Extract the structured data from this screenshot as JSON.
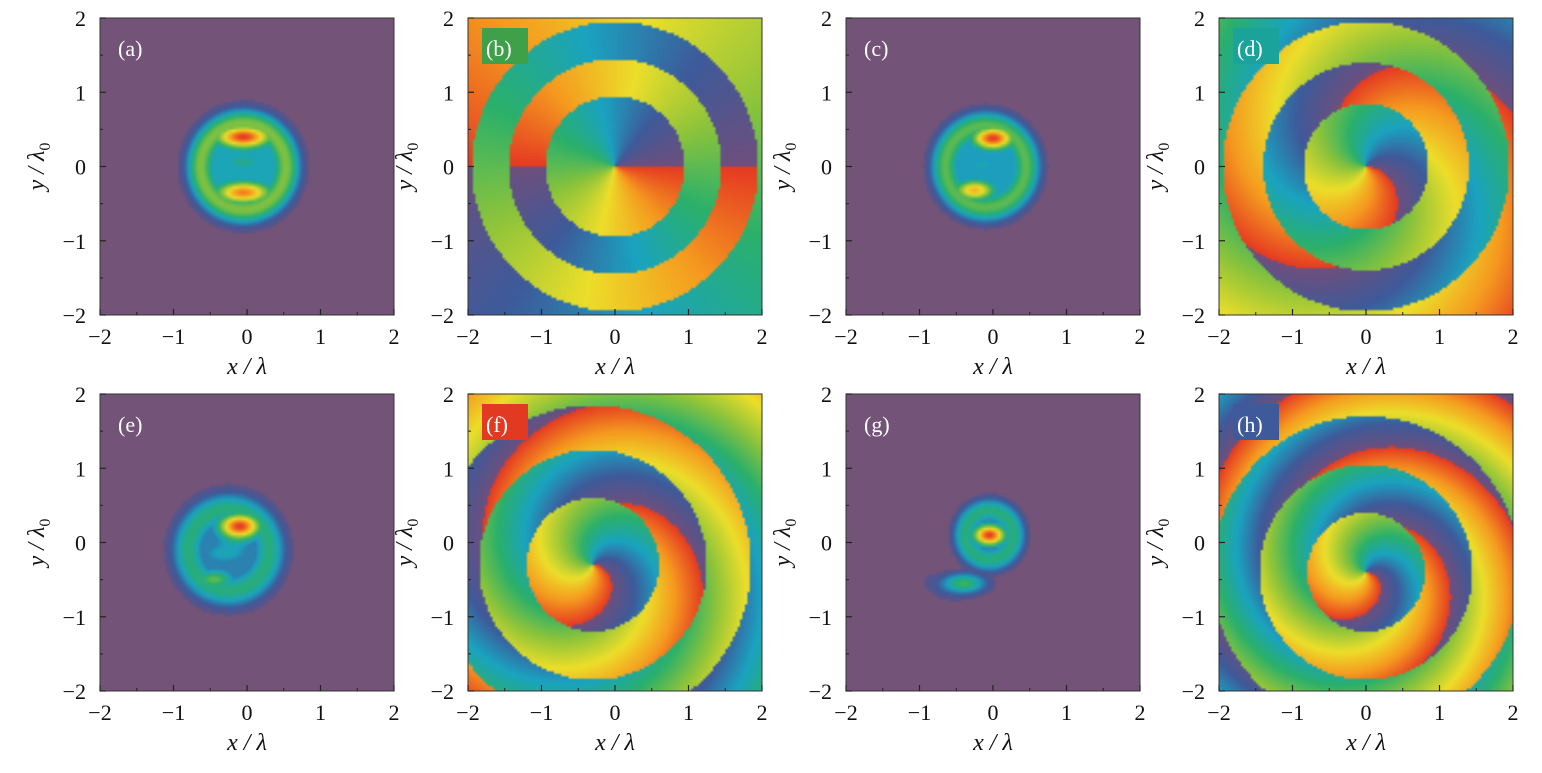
{
  "figure": {
    "panels": [
      {
        "id": "a",
        "label": "(a)",
        "kind": "intensity",
        "label_bg": "",
        "ylabel_style": "upright",
        "blobs": [
          {
            "x": -0.05,
            "y": 0.4,
            "sx": 0.3,
            "sy": 0.12,
            "a": 1.0
          },
          {
            "x": -0.05,
            "y": -0.35,
            "sx": 0.3,
            "sy": 0.12,
            "a": 0.9
          },
          {
            "x": -0.05,
            "y": 0.05,
            "sx": 0.32,
            "sy": 0.09,
            "a": 0.35
          }
        ],
        "ring": {
          "x": -0.05,
          "y": 0.0,
          "r": 0.58,
          "w": 0.14,
          "a": 0.55
        }
      },
      {
        "id": "b",
        "label": "(b)",
        "kind": "phase",
        "label_bg": "#3fa04a",
        "ylabel_style": "rotated",
        "vortex": {
          "x": 0.0,
          "y": 0.0
        },
        "spiral": 0.0,
        "rings": [
          0.95,
          1.45,
          1.95
        ]
      },
      {
        "id": "c",
        "label": "(c)",
        "kind": "intensity",
        "label_bg": "",
        "ylabel_style": "rotated",
        "blobs": [
          {
            "x": 0.0,
            "y": 0.38,
            "sx": 0.22,
            "sy": 0.12,
            "a": 1.0
          },
          {
            "x": -0.25,
            "y": -0.32,
            "sx": 0.22,
            "sy": 0.11,
            "a": 0.8
          },
          {
            "x": -0.15,
            "y": 0.02,
            "sx": 0.25,
            "sy": 0.08,
            "a": 0.3
          }
        ],
        "ring": {
          "x": -0.1,
          "y": 0.0,
          "r": 0.55,
          "w": 0.14,
          "a": 0.5
        }
      },
      {
        "id": "d",
        "label": "(d)",
        "kind": "phase",
        "label_bg": "#1aa39a",
        "ylabel_style": "rotated",
        "vortex": {
          "x": 0.0,
          "y": 0.0
        },
        "spiral": 0.6,
        "rings": [
          0.85,
          1.4,
          1.95
        ]
      },
      {
        "id": "e",
        "label": "(e)",
        "kind": "intensity",
        "label_bg": "",
        "ylabel_style": "upright",
        "blobs": [
          {
            "x": -0.1,
            "y": 0.22,
            "sx": 0.22,
            "sy": 0.13,
            "a": 1.0
          },
          {
            "x": -0.45,
            "y": -0.5,
            "sx": 0.22,
            "sy": 0.1,
            "a": 0.5
          },
          {
            "x": -0.3,
            "y": -0.15,
            "sx": 0.3,
            "sy": 0.12,
            "a": 0.3
          }
        ],
        "ring": {
          "x": -0.25,
          "y": -0.1,
          "r": 0.55,
          "w": 0.16,
          "a": 0.4
        }
      },
      {
        "id": "f",
        "label": "(f)",
        "kind": "phase",
        "label_bg": "#e23a22",
        "ylabel_style": "rotated",
        "vortex": {
          "x": -0.3,
          "y": -0.3
        },
        "spiral": 1.0,
        "rings": [
          0.9,
          1.55,
          2.15
        ]
      },
      {
        "id": "g",
        "label": "(g)",
        "kind": "intensity",
        "label_bg": "",
        "ylabel_style": "rotated",
        "blobs": [
          {
            "x": -0.05,
            "y": 0.1,
            "sx": 0.17,
            "sy": 0.11,
            "a": 1.0
          },
          {
            "x": -0.4,
            "y": -0.55,
            "sx": 0.22,
            "sy": 0.1,
            "a": 0.45
          }
        ],
        "ring": {
          "x": -0.05,
          "y": 0.1,
          "r": 0.33,
          "w": 0.12,
          "a": 0.4
        }
      },
      {
        "id": "h",
        "label": "(h)",
        "kind": "phase",
        "label_bg": "#3e5a9a",
        "ylabel_style": "rotated",
        "vortex": {
          "x": 0.0,
          "y": -0.4
        },
        "spiral": 1.3,
        "rings": [
          0.8,
          1.45,
          2.1
        ]
      }
    ],
    "axes": {
      "x_label": "x / λ",
      "y_label": "y / λ0",
      "xlim": [
        -2,
        2
      ],
      "ylim": [
        -2,
        2
      ],
      "ticks": [
        -2,
        -1,
        0,
        1,
        2
      ],
      "tick_labels": [
        "−2",
        "−1",
        "0",
        "1",
        "2"
      ]
    },
    "colors": {
      "background": "#735377",
      "colormap": [
        "#6e4f7d",
        "#3e5a9a",
        "#1aa3c0",
        "#2bb06a",
        "#8fc43a",
        "#ecde2a",
        "#f59a1f",
        "#e53a22"
      ]
    }
  }
}
